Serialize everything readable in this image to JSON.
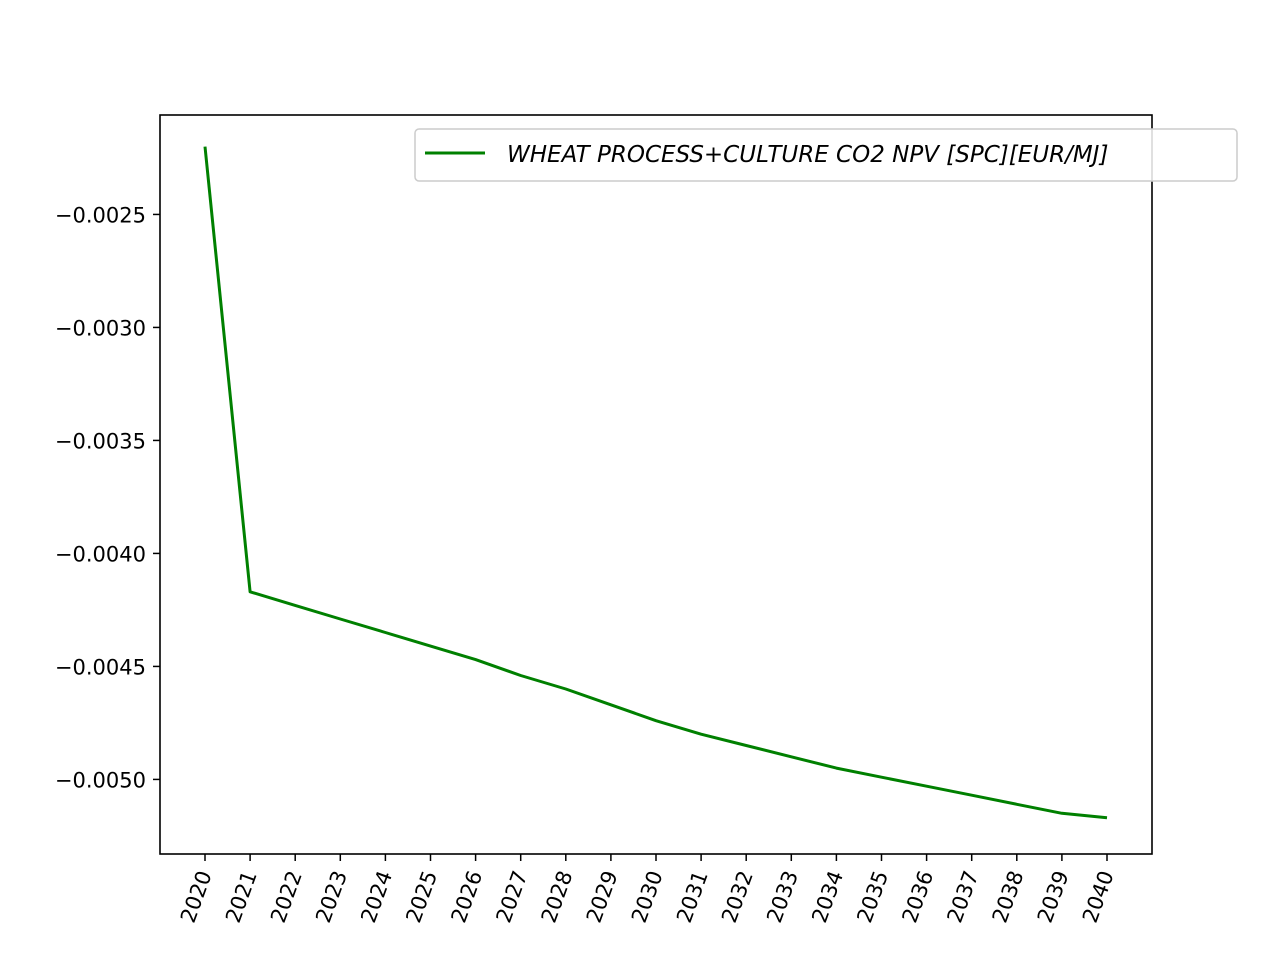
{
  "chart_data": {
    "type": "line",
    "title": "",
    "xlabel": "",
    "ylabel": "",
    "x": [
      "2020",
      "2021",
      "2022",
      "2023",
      "2024",
      "2025",
      "2026",
      "2027",
      "2028",
      "2029",
      "2030",
      "2031",
      "2032",
      "2033",
      "2034",
      "2035",
      "2036",
      "2037",
      "2038",
      "2039",
      "2040"
    ],
    "series": [
      {
        "name": "WHEAT PROCESS+CULTURE CO2 NPV [SPC][EUR/MJ]",
        "color": "#008000",
        "values": [
          -0.0022,
          -0.00417,
          -0.00423,
          -0.00429,
          -0.00435,
          -0.00441,
          -0.00447,
          -0.00454,
          -0.0046,
          -0.00467,
          -0.00474,
          -0.0048,
          -0.00485,
          -0.0049,
          -0.00495,
          -0.00499,
          -0.00503,
          -0.00507,
          -0.00511,
          -0.00515,
          -0.00517
        ]
      }
    ],
    "ylim": [
      -0.00533,
      -0.00206
    ],
    "yticks": [
      -0.0025,
      -0.003,
      -0.0035,
      -0.004,
      -0.0045,
      -0.005
    ],
    "ytick_labels": [
      "−0.0025",
      "−0.0030",
      "−0.0035",
      "−0.0040",
      "−0.0045",
      "−0.0050"
    ],
    "grid": false,
    "legend_position": "top-right"
  }
}
